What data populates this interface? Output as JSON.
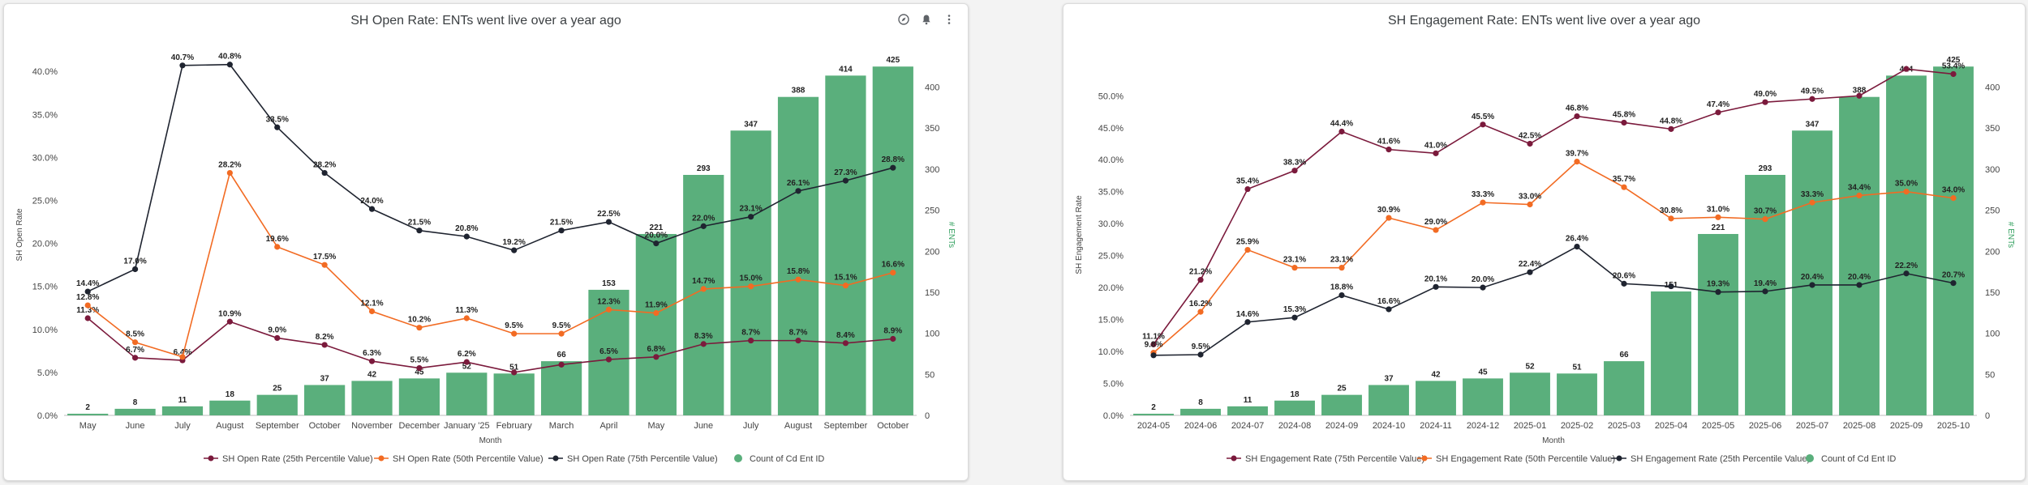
{
  "charts": [
    {
      "title": "SH Open Rate: ENTs went live over a year ago",
      "chart_data": {
        "type": "bar",
        "title": "SH Open Rate: ENTs went live over a year ago",
        "xlabel": "Month",
        "ylabel": "SH Open Rate",
        "y2label": "# ENTs",
        "ylim": [
          0,
          42
        ],
        "y2lim": [
          0,
          440
        ],
        "yticks": [
          "0.0%",
          "5.0%",
          "10.0%",
          "15.0%",
          "20.0%",
          "25.0%",
          "30.0%",
          "35.0%",
          "40.0%"
        ],
        "y2ticks": [
          "0",
          "50",
          "100",
          "150",
          "200",
          "250",
          "300",
          "350",
          "400"
        ],
        "categories": [
          "May",
          "June",
          "July",
          "August",
          "September",
          "October",
          "November",
          "December",
          "January '25",
          "February",
          "March",
          "April",
          "May",
          "June",
          "July",
          "August",
          "September",
          "October"
        ],
        "bars": {
          "name": "Count of Cd Ent ID",
          "color": "#5aaf7c",
          "values": [
            2,
            8,
            11,
            18,
            25,
            37,
            42,
            45,
            52,
            51,
            66,
            153,
            221,
            293,
            347,
            388,
            414,
            425
          ]
        },
        "series": [
          {
            "name": "SH Open Rate (25th Percentile Value)",
            "color": "#7b1a3c",
            "values": [
              11.3,
              6.7,
              6.4,
              10.9,
              9.0,
              8.2,
              6.3,
              5.5,
              6.2,
              5.0,
              5.9,
              6.5,
              6.8,
              8.3,
              8.7,
              8.7,
              8.4,
              8.9
            ],
            "labels": [
              "11.3%",
              "6.7%",
              "6.4%",
              "10.9%",
              "9.0%",
              "8.2%",
              "6.3%",
              "5.5%",
              "6.2%",
              "",
              "",
              "6.5%",
              "6.8%",
              "8.3%",
              "8.7%",
              "8.7%",
              "8.4%",
              "8.9%"
            ]
          },
          {
            "name": "SH Open Rate (50th Percentile Value)",
            "color": "#f26b23",
            "values": [
              12.8,
              8.5,
              6.8,
              28.2,
              19.6,
              17.5,
              12.1,
              10.2,
              11.3,
              9.5,
              9.5,
              12.3,
              11.9,
              14.7,
              15.0,
              15.8,
              15.1,
              16.6
            ],
            "labels": [
              "12.8%",
              "8.5%",
              "",
              "28.2%",
              "19.6%",
              "17.5%",
              "12.1%",
              "10.2%",
              "11.3%",
              "9.5%",
              "9.5%",
              "12.3%",
              "11.9%",
              "14.7%",
              "15.0%",
              "15.8%",
              "15.1%",
              "16.6%"
            ]
          },
          {
            "name": "SH Open Rate (75th Percentile Value)",
            "color": "#1f2430",
            "values": [
              14.4,
              17.0,
              40.7,
              40.8,
              33.5,
              28.2,
              24.0,
              21.5,
              20.8,
              19.2,
              21.5,
              22.5,
              20.0,
              22.0,
              23.1,
              26.1,
              27.3,
              28.8
            ],
            "labels": [
              "14.4%",
              "17.0%",
              "40.7%",
              "40.8%",
              "33.5%",
              "28.2%",
              "24.0%",
              "21.5%",
              "20.8%",
              "19.2%",
              "21.5%",
              "22.5%",
              "20.0%",
              "22.0%",
              "23.1%",
              "26.1%",
              "27.3%",
              "28.8%"
            ]
          }
        ],
        "legend": [
          "SH Open Rate (25th Percentile Value)",
          "SH Open Rate (50th Percentile Value)",
          "SH Open Rate (75th Percentile Value)",
          "Count of Cd Ent ID"
        ]
      }
    },
    {
      "title": "SH Engagement Rate: ENTs went live over a year ago",
      "chart_data": {
        "type": "bar",
        "title": "SH Engagement Rate: ENTs went live over a year ago",
        "xlabel": "Month",
        "ylabel": "SH Engagement Rate",
        "y2label": "# ENTs",
        "ylim": [
          0,
          56.5
        ],
        "y2lim": [
          0,
          440
        ],
        "yticks": [
          "0.0%",
          "5.0%",
          "10.0%",
          "15.0%",
          "20.0%",
          "25.0%",
          "30.0%",
          "35.0%",
          "40.0%",
          "45.0%",
          "50.0%"
        ],
        "y2ticks": [
          "0",
          "50",
          "100",
          "150",
          "200",
          "250",
          "300",
          "350",
          "400"
        ],
        "categories": [
          "2024-05",
          "2024-06",
          "2024-07",
          "2024-08",
          "2024-09",
          "2024-10",
          "2024-11",
          "2024-12",
          "2025-01",
          "2025-02",
          "2025-03",
          "2025-04",
          "2025-05",
          "2025-06",
          "2025-07",
          "2025-08",
          "2025-09",
          "2025-10"
        ],
        "bars": {
          "name": "Count of Cd Ent ID",
          "color": "#5aaf7c",
          "values": [
            2,
            8,
            11,
            18,
            25,
            37,
            42,
            45,
            52,
            51,
            66,
            151,
            221,
            293,
            347,
            388,
            414,
            425
          ]
        },
        "series": [
          {
            "name": "SH Engagement Rate (75th Percentile Value)",
            "color": "#7b1a3c",
            "values": [
              11.1,
              21.2,
              35.4,
              38.3,
              44.4,
              41.6,
              41.0,
              45.5,
              42.5,
              46.8,
              45.8,
              44.8,
              47.4,
              49.0,
              49.5,
              50.0,
              54.2,
              53.4
            ],
            "labels": [
              "11.1%",
              "21.2%",
              "35.4%",
              "38.3%",
              "44.4%",
              "41.6%",
              "41.0%",
              "45.5%",
              "42.5%",
              "46.8%",
              "45.8%",
              "44.8%",
              "47.4%",
              "49.0%",
              "49.5%",
              "",
              "",
              "53.4%"
            ]
          },
          {
            "name": "SH Engagement Rate (50th Percentile Value)",
            "color": "#f26b23",
            "values": [
              9.8,
              16.2,
              25.9,
              23.1,
              23.1,
              30.9,
              29.0,
              33.3,
              33.0,
              39.7,
              35.7,
              30.8,
              31.0,
              30.7,
              33.3,
              34.4,
              35.0,
              34.0
            ],
            "labels": [
              "9.8%",
              "16.2%",
              "25.9%",
              "23.1%",
              "23.1%",
              "30.9%",
              "29.0%",
              "33.3%",
              "33.0%",
              "39.7%",
              "35.7%",
              "30.8%",
              "31.0%",
              "30.7%",
              "33.3%",
              "34.4%",
              "35.0%",
              "34.0%"
            ]
          },
          {
            "name": "SH Engagement Rate (25th Percentile Value)",
            "color": "#1f2430",
            "values": [
              9.4,
              9.5,
              14.6,
              15.3,
              18.8,
              16.6,
              20.1,
              20.0,
              22.4,
              26.4,
              20.6,
              20.2,
              19.3,
              19.4,
              20.4,
              20.4,
              22.2,
              20.7
            ],
            "labels": [
              "",
              "9.5%",
              "14.6%",
              "15.3%",
              "18.8%",
              "16.6%",
              "20.1%",
              "20.0%",
              "22.4%",
              "26.4%",
              "20.6%",
              "",
              "19.3%",
              "19.4%",
              "20.4%",
              "20.4%",
              "22.2%",
              "20.7%"
            ]
          }
        ],
        "legend": [
          "SH Engagement Rate (75th Percentile Value)",
          "SH Engagement Rate (50th Percentile Value)",
          "SH Engagement Rate (25th Percentile Value)",
          "Count of Cd Ent ID"
        ]
      }
    }
  ]
}
